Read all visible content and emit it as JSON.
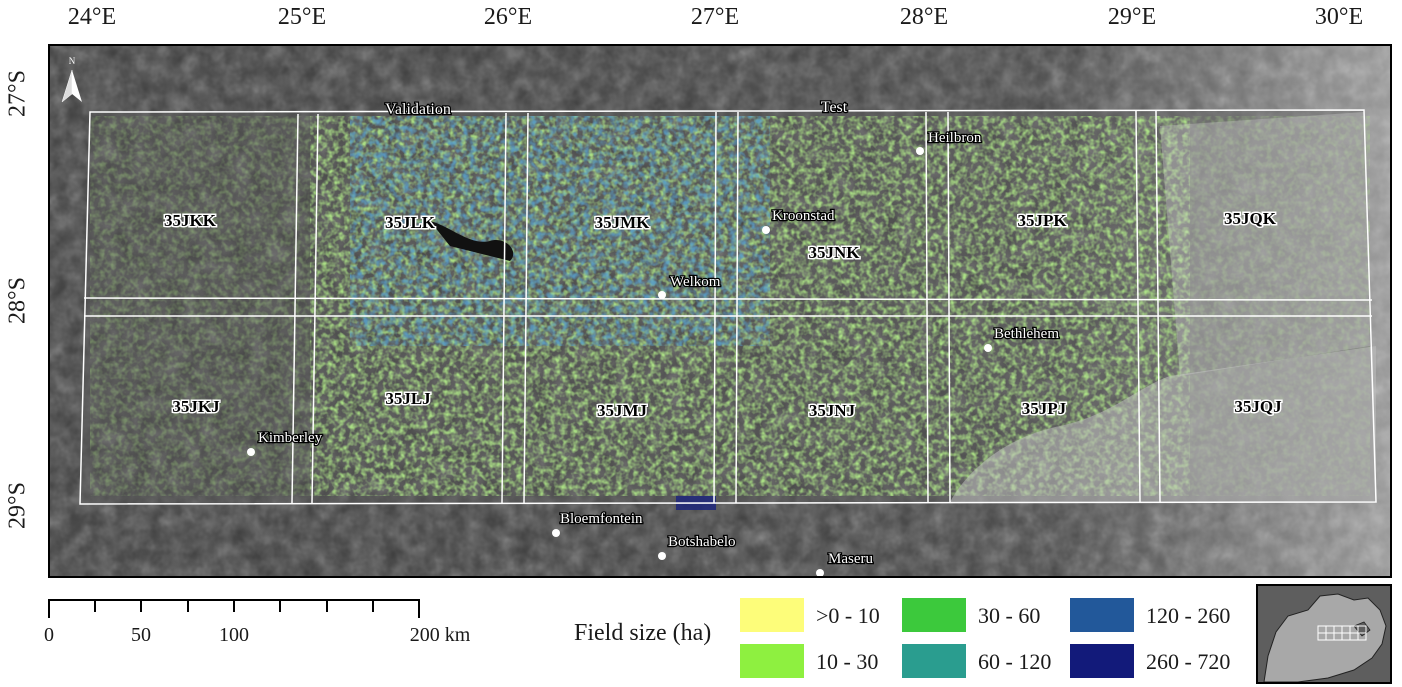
{
  "longitude_labels": [
    "24°E",
    "25°E",
    "26°E",
    "27°E",
    "28°E",
    "29°E",
    "30°E"
  ],
  "latitude_labels": [
    "27°S",
    "28°S",
    "29°S"
  ],
  "north_arrow": {
    "letter": "N",
    "icon": "north-arrow-icon"
  },
  "tiles": {
    "row1": [
      "35JKK",
      "35JLK",
      "35JMK",
      "35JNK",
      "35JPK",
      "35JQK"
    ],
    "row2": [
      "35JKJ",
      "35JLJ",
      "35JMJ",
      "35JNJ",
      "35JPJ",
      "35JQJ"
    ]
  },
  "splits": [
    "Validation",
    "Test"
  ],
  "cities": [
    "Heilbron",
    "Kroonstad",
    "Welkom",
    "Bethlehem",
    "Kimberley",
    "Bloemfontein",
    "Botshabelo",
    "Maseru"
  ],
  "scale_bar": {
    "labels": [
      "0",
      "50",
      "100",
      "200 km"
    ]
  },
  "legend": {
    "title": "Field size (ha)",
    "items": [
      {
        "label": ">0 - 10",
        "color": "#fdfd7a"
      },
      {
        "label": "10 - 30",
        "color": "#8ef040"
      },
      {
        "label": "30 - 60",
        "color": "#3cc93c"
      },
      {
        "label": "60 - 120",
        "color": "#2a9d8f"
      },
      {
        "label": "120 - 260",
        "color": "#22589a"
      },
      {
        "label": "260 - 720",
        "color": "#121a7a"
      }
    ]
  },
  "colors": {
    "background_imagery": "#4a4a4a",
    "grid_lines": "#ffffff",
    "frame": "#000000"
  }
}
